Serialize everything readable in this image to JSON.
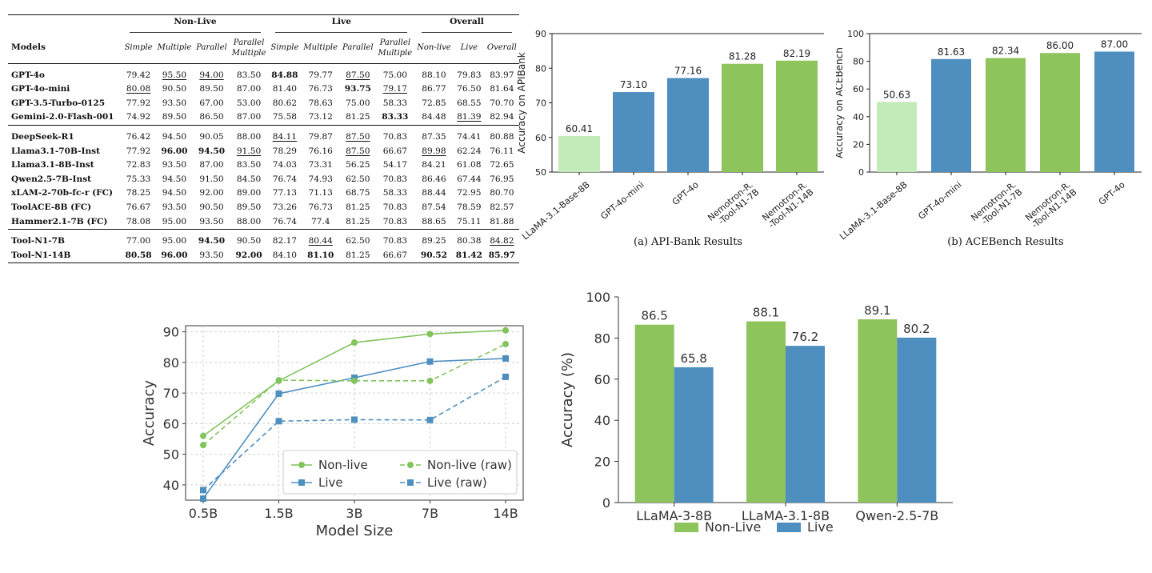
{
  "table": {
    "model_header": "Models",
    "groups": [
      {
        "label": "Non-Live",
        "span": 4
      },
      {
        "label": "Live",
        "span": 4
      },
      {
        "label": "Overall",
        "span": 3
      }
    ],
    "subheaders": [
      "Simple",
      "Multiple",
      "Parallel",
      "Parallel Multiple",
      "Simple",
      "Multiple",
      "Parallel",
      "Parallel Multiple",
      "Non-live",
      "Live",
      "Overall"
    ],
    "sections": [
      {
        "rows": [
          {
            "model": "GPT-4o",
            "values": [
              "79.42",
              "95.50",
              "94.00",
              "83.50",
              "84.88",
              "79.77",
              "87.50",
              "75.00",
              "88.10",
              "79.83",
              "83.97"
            ],
            "bold": [
              4
            ],
            "underline": [
              1,
              2,
              6
            ]
          },
          {
            "model": "GPT-4o-mini",
            "values": [
              "80.08",
              "90.50",
              "89.50",
              "87.00",
              "81.40",
              "76.73",
              "93.75",
              "79.17",
              "86.77",
              "76.50",
              "81.64"
            ],
            "bold": [
              6
            ],
            "underline": [
              0,
              7
            ]
          },
          {
            "model": "GPT-3.5-Turbo-0125",
            "values": [
              "77.92",
              "93.50",
              "67.00",
              "53.00",
              "80.62",
              "78.63",
              "75.00",
              "58.33",
              "72.85",
              "68.55",
              "70.70"
            ],
            "bold": [],
            "underline": []
          },
          {
            "model": "Gemini-2.0-Flash-001",
            "values": [
              "74.92",
              "89.50",
              "86.50",
              "87.00",
              "75.58",
              "73.12",
              "81.25",
              "83.33",
              "84.48",
              "81.39",
              "82.94"
            ],
            "bold": [
              7
            ],
            "underline": [
              9
            ]
          }
        ]
      },
      {
        "rows": [
          {
            "model": "DeepSeek-R1",
            "values": [
              "76.42",
              "94.50",
              "90.05",
              "88.00",
              "84.11",
              "79.87",
              "87.50",
              "70.83",
              "87.35",
              "74.41",
              "80.88"
            ],
            "bold": [],
            "underline": [
              4,
              6
            ]
          },
          {
            "model": "Llama3.1-70B-Inst",
            "values": [
              "77.92",
              "96.00",
              "94.50",
              "91.50",
              "78.29",
              "76.16",
              "87.50",
              "66.67",
              "89.98",
              "62.24",
              "76.11"
            ],
            "bold": [
              1,
              2
            ],
            "underline": [
              3,
              6,
              8
            ]
          },
          {
            "model": "Llama3.1-8B-Inst",
            "values": [
              "72.83",
              "93.50",
              "87.00",
              "83.50",
              "74.03",
              "73.31",
              "56.25",
              "54.17",
              "84.21",
              "61.08",
              "72.65"
            ],
            "bold": [],
            "underline": []
          },
          {
            "model": "Qwen2.5-7B-Inst",
            "values": [
              "75.33",
              "94.50",
              "91.50",
              "84.50",
              "76.74",
              "74.93",
              "62.50",
              "70.83",
              "86.46",
              "67.44",
              "76.95"
            ],
            "bold": [],
            "underline": []
          },
          {
            "model": "xLAM-2-70b-fc-r (FC)",
            "values": [
              "78.25",
              "94.50",
              "92.00",
              "89.00",
              "77.13",
              "71.13",
              "68.75",
              "58.33",
              "88.44",
              "72.95",
              "80.70"
            ],
            "bold": [],
            "underline": []
          },
          {
            "model": "ToolACE-8B (FC)",
            "values": [
              "76.67",
              "93.50",
              "90.50",
              "89.50",
              "73.26",
              "76.73",
              "81.25",
              "70.83",
              "87.54",
              "78.59",
              "82.57"
            ],
            "bold": [],
            "underline": []
          },
          {
            "model": "Hammer2.1-7B (FC)",
            "values": [
              "78.08",
              "95.00",
              "93.50",
              "88.00",
              "76.74",
              "77.4",
              "81.25",
              "70.83",
              "88.65",
              "75.11",
              "81.88"
            ],
            "bold": [],
            "underline": []
          }
        ]
      },
      {
        "rows": [
          {
            "model": "Tool-N1-7B",
            "values": [
              "77.00",
              "95.00",
              "94.50",
              "90.50",
              "82.17",
              "80.44",
              "62.50",
              "70.83",
              "89.25",
              "80.38",
              "84.82"
            ],
            "bold": [
              2
            ],
            "underline": [
              5,
              10
            ]
          },
          {
            "model": "Tool-N1-14B",
            "values": [
              "80.58",
              "96.00",
              "93.50",
              "92.00",
              "84.10",
              "81.10",
              "81.25",
              "66.67",
              "90.52",
              "81.42",
              "85.97"
            ],
            "bold": [
              0,
              1,
              3,
              5,
              8,
              9,
              10
            ],
            "underline": []
          }
        ]
      }
    ]
  },
  "chart_data": [
    {
      "type": "bar",
      "caption": "(a) API-Bank Results",
      "categories": [
        "LLaMA-3.1-Base-8B",
        "GPT-4o-mini",
        "GPT-4o",
        "Nemotron-R.\n-Tool-N1-7B",
        "Nemotron-R.\n-Tool-N1-14B"
      ],
      "values": [
        60.41,
        73.1,
        77.16,
        81.28,
        82.19
      ],
      "value_labels": [
        "60.41",
        "73.10",
        "77.16",
        "81.28",
        "82.19"
      ],
      "bar_colors": [
        "#c3ebb9",
        "#4f8fc0",
        "#4f8fc0",
        "#8dc45c",
        "#8dc45c"
      ],
      "ylabel": "Accuracy on APIBank",
      "ylim": [
        50,
        90
      ],
      "yticks": [
        50,
        60,
        70,
        80,
        90
      ],
      "grid": false
    },
    {
      "type": "bar",
      "caption": "(b) ACEBench Results",
      "categories": [
        "LLaMA-3.1-Base-8B",
        "GPT-4o-mini",
        "Nemotron-R.\n-Tool-N1-7B",
        "Nemotron-R.\n-Tool-N1-14B",
        "GPT-4o"
      ],
      "values": [
        50.63,
        81.63,
        82.34,
        86.0,
        87.0
      ],
      "value_labels": [
        "50.63",
        "81.63",
        "82.34",
        "86.00",
        "87.00"
      ],
      "bar_colors": [
        "#c3ebb9",
        "#4f8fc0",
        "#8dc45c",
        "#8dc45c",
        "#4f8fc0"
      ],
      "ylabel": "Accuracy on ACEBench",
      "ylim": [
        0,
        100
      ],
      "yticks": [
        0,
        20,
        40,
        60,
        80,
        100
      ],
      "grid": false
    },
    {
      "type": "line",
      "categories": [
        "0.5B",
        "1.5B",
        "3B",
        "7B",
        "14B"
      ],
      "series": [
        {
          "name": "Non-live",
          "values": [
            56,
            74,
            86.5,
            89.3,
            90.5
          ],
          "color": "#82c45c",
          "style": "solid"
        },
        {
          "name": "Live",
          "values": [
            35.5,
            69.8,
            75,
            80.3,
            81.3
          ],
          "color": "#4f8fc0",
          "style": "solid"
        },
        {
          "name": "Non-live (raw)",
          "values": [
            53,
            74.2,
            74,
            74,
            86
          ],
          "color": "#82c45c",
          "style": "dashed"
        },
        {
          "name": "Live (raw)",
          "values": [
            38.3,
            60.8,
            61.3,
            61.2,
            75.3
          ],
          "color": "#4f8fc0",
          "style": "dashed"
        }
      ],
      "xlabel": "Model Size",
      "ylabel": "Accuracy",
      "ylim": [
        35,
        92
      ],
      "yticks": [
        40,
        50,
        60,
        70,
        80,
        90
      ],
      "grid": true,
      "legend": "lower-right"
    },
    {
      "type": "bar",
      "categories": [
        "LLaMA-3-8B",
        "LLaMA-3.1-8B",
        "Qwen-2.5-7B"
      ],
      "series": [
        {
          "name": "Non-Live",
          "values": [
            86.5,
            88.1,
            89.1
          ],
          "labels": [
            "86.5",
            "88.1",
            "89.1"
          ],
          "color": "#8dc45c"
        },
        {
          "name": "Live",
          "values": [
            65.8,
            76.2,
            80.2
          ],
          "labels": [
            "65.8",
            "76.2",
            "80.2"
          ],
          "color": "#4f8fc0"
        }
      ],
      "ylabel": "Accuracy (%)",
      "ylim": [
        0,
        100
      ],
      "yticks": [
        0,
        20,
        40,
        60,
        80,
        100
      ],
      "grid": false,
      "legend": "bottom"
    }
  ]
}
